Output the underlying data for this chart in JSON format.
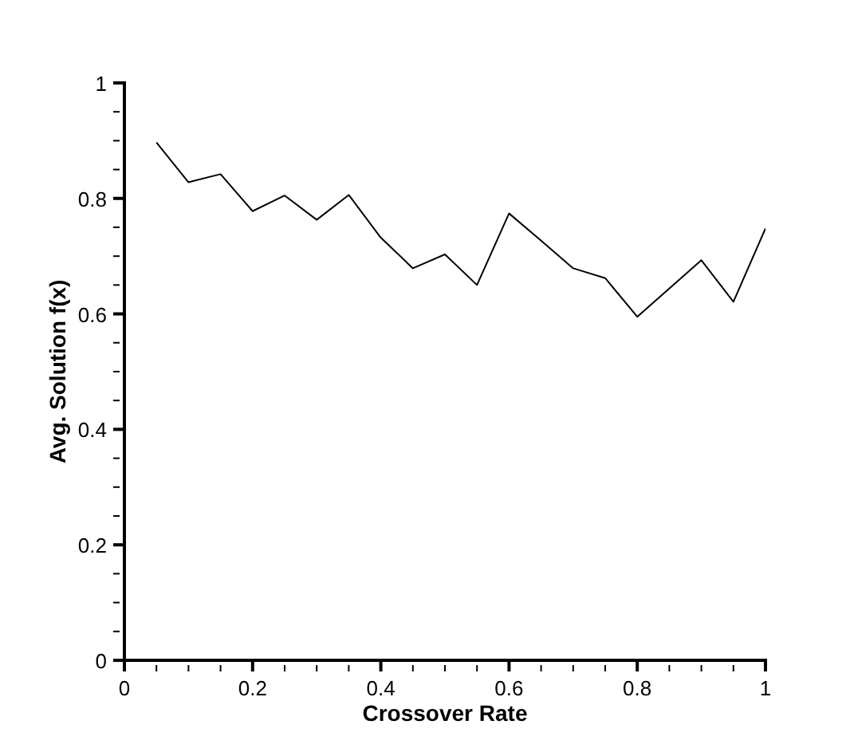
{
  "chart_data": {
    "type": "line",
    "xlabel": "Crossover Rate",
    "ylabel": "Avg. Solution f(x)",
    "x": [
      0.05,
      0.1,
      0.15,
      0.2,
      0.25,
      0.3,
      0.35,
      0.4,
      0.45,
      0.5,
      0.55,
      0.6,
      0.65,
      0.7,
      0.75,
      0.8,
      0.85,
      0.9,
      0.95,
      1
    ],
    "series": [
      {
        "color": "#000000",
        "values": [
          0.897,
          0.828,
          0.842,
          0.778,
          0.805,
          0.763,
          0.806,
          0.732,
          0.679,
          0.703,
          0.65,
          0.774,
          0.727,
          0.679,
          0.662,
          0.595,
          0.644,
          0.693,
          0.621,
          0.748
        ]
      }
    ],
    "xlim": [
      0,
      1
    ],
    "ylim": [
      0,
      1
    ],
    "xticks": [
      0,
      {
        "value": 0.05,
        "label": null
      },
      {
        "value": 0.1,
        "label": null
      },
      {
        "value": 0.15,
        "label": null
      },
      0.2,
      {
        "value": 0.25,
        "label": null
      },
      {
        "value": 0.3,
        "label": null
      },
      {
        "value": 0.35,
        "label": null
      },
      0.4,
      {
        "value": 0.45,
        "label": null
      },
      {
        "value": 0.5,
        "label": null
      },
      {
        "value": 0.55,
        "label": null
      },
      0.6,
      {
        "value": 0.65,
        "label": null
      },
      {
        "value": 0.7,
        "label": null
      },
      {
        "value": 0.75,
        "label": null
      },
      0.8,
      {
        "value": 0.85,
        "label": null
      },
      {
        "value": 0.9,
        "label": null
      },
      {
        "value": 0.95,
        "label": null
      },
      1
    ],
    "yticks": [
      0,
      {
        "value": 0.05,
        "label": null
      },
      {
        "value": 0.1,
        "label": null
      },
      {
        "value": 0.15,
        "label": null
      },
      0.2,
      {
        "value": 0.25,
        "label": null
      },
      {
        "value": 0.3,
        "label": null
      },
      {
        "value": 0.35,
        "label": null
      },
      0.4,
      {
        "value": 0.45,
        "label": null
      },
      {
        "value": 0.5,
        "label": null
      },
      {
        "value": 0.55,
        "label": null
      },
      0.6,
      {
        "value": 0.65,
        "label": null
      },
      {
        "value": 0.7,
        "label": null
      },
      {
        "value": 0.75,
        "label": null
      },
      0.8,
      {
        "value": 0.85,
        "label": null
      },
      {
        "value": 0.9,
        "label": null
      },
      {
        "value": 0.95,
        "label": null
      },
      1
    ],
    "grid": false,
    "legend": false,
    "marker": "none",
    "line_style": "solid"
  }
}
